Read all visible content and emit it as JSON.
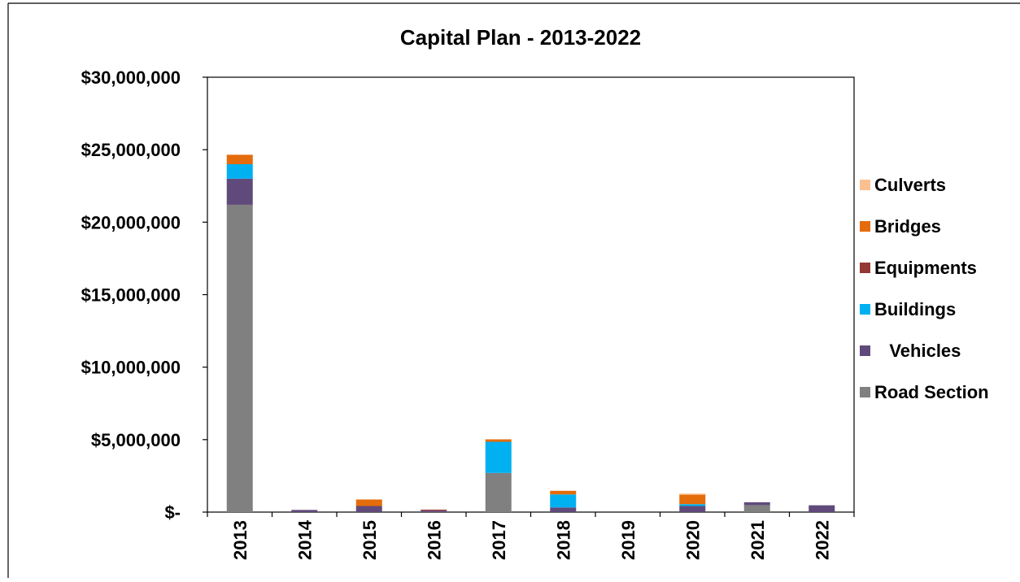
{
  "chart_data": {
    "type": "bar",
    "stacked": true,
    "title": "Capital Plan - 2013-2022",
    "xlabel": "",
    "ylabel": "",
    "categories": [
      "2013",
      "2014",
      "2015",
      "2016",
      "2017",
      "2018",
      "2019",
      "2020",
      "2021",
      "2022"
    ],
    "y_ticks": [
      0,
      5000000,
      10000000,
      15000000,
      20000000,
      25000000,
      30000000
    ],
    "y_tick_labels": [
      "$-",
      "$5,000,000",
      "$10,000,000",
      "$15,000,000",
      "$20,000,000",
      "$25,000,000",
      "$30,000,000"
    ],
    "ylim": [
      0,
      30000000
    ],
    "grid": false,
    "legend_position": "right",
    "series": [
      {
        "name": "Road Section",
        "color": "#808080",
        "values": [
          21200000,
          0,
          0,
          0,
          2700000,
          0,
          0,
          0,
          480000,
          0
        ]
      },
      {
        "name": "   Vehicles",
        "color": "#604A7B",
        "values": [
          1800000,
          150000,
          420000,
          100000,
          0,
          320000,
          0,
          420000,
          200000,
          470000
        ]
      },
      {
        "name": "Buildings",
        "color": "#00B0F0",
        "values": [
          1000000,
          0,
          0,
          0,
          2150000,
          900000,
          0,
          130000,
          0,
          0
        ]
      },
      {
        "name": "Equipments",
        "color": "#953735",
        "values": [
          0,
          0,
          0,
          70000,
          0,
          0,
          0,
          0,
          0,
          0
        ]
      },
      {
        "name": "Bridges",
        "color": "#E46C0A",
        "values": [
          650000,
          0,
          450000,
          0,
          170000,
          250000,
          0,
          650000,
          0,
          0
        ]
      },
      {
        "name": "Culverts",
        "color": "#FAC090",
        "values": [
          0,
          0,
          0,
          0,
          0,
          0,
          0,
          80000,
          0,
          0
        ]
      }
    ]
  }
}
